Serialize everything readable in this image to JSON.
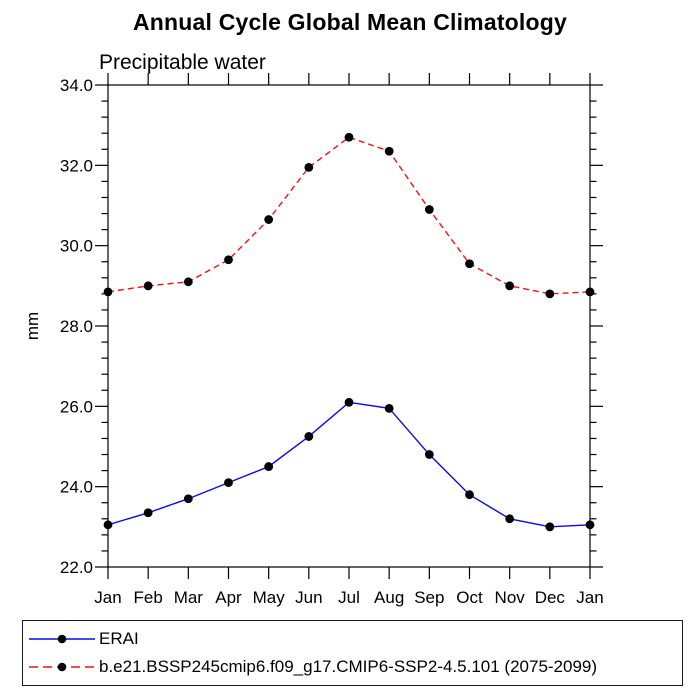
{
  "chart_data": {
    "type": "line",
    "title": "Annual Cycle Global Mean Climatology",
    "subtitle": "Precipitable water",
    "ylabel": "mm",
    "xlabel": "",
    "categories": [
      "Jan",
      "Feb",
      "Mar",
      "Apr",
      "May",
      "Jun",
      "Jul",
      "Aug",
      "Sep",
      "Oct",
      "Nov",
      "Dec",
      "Jan"
    ],
    "series": [
      {
        "name": "ERAI",
        "color": "#0a0ae8",
        "line_style": "solid",
        "marker": "filled-circle",
        "marker_color": "#000000",
        "values": [
          23.05,
          23.35,
          23.7,
          24.1,
          24.5,
          25.25,
          26.1,
          25.95,
          24.8,
          23.8,
          23.2,
          23.0,
          23.05
        ]
      },
      {
        "name": "b.e21.BSSP245cmip6.f09_g17.CMIP6-SSP2-4.5.101 (2075-2099)",
        "color": "#f41010",
        "line_style": "dashed",
        "marker": "filled-circle",
        "marker_color": "#000000",
        "values": [
          28.85,
          29.0,
          29.1,
          29.65,
          30.65,
          31.95,
          32.7,
          32.35,
          30.9,
          29.55,
          29.0,
          28.8,
          28.85
        ]
      }
    ],
    "ylim": [
      22.0,
      34.0
    ],
    "ytick_interval": 2.0,
    "yminor_interval": 0.4,
    "ytick_labels": [
      "22.0",
      "24.0",
      "26.0",
      "28.0",
      "30.0",
      "32.0",
      "34.0"
    ],
    "grid": false,
    "axis_color": "#000000",
    "legend_position": "bottom-box"
  }
}
